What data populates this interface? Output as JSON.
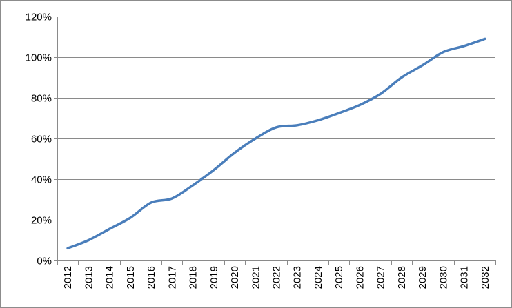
{
  "chart_data": {
    "type": "line",
    "title": "",
    "xlabel": "",
    "ylabel": "",
    "categories": [
      "2012",
      "2013",
      "2014",
      "2015",
      "2016",
      "2017",
      "2018",
      "2019",
      "2020",
      "2021",
      "2022",
      "2023",
      "2024",
      "2025",
      "2026",
      "2027",
      "2028",
      "2029",
      "2030",
      "2031",
      "2032"
    ],
    "series": [
      {
        "values": [
          6,
          10,
          15.5,
          21,
          28.5,
          30.5,
          37,
          44.5,
          53,
          60,
          65.5,
          66.5,
          69,
          72.5,
          76.5,
          82,
          90,
          96,
          102.5,
          105.5,
          109
        ],
        "color": "#4a7ebb"
      }
    ],
    "ylim": [
      0,
      120
    ],
    "yticks": [
      0,
      20,
      40,
      60,
      80,
      100,
      120
    ],
    "ytick_labels": [
      "0%",
      "20%",
      "40%",
      "60%",
      "80%",
      "100%",
      "120%"
    ],
    "y_unit": "%",
    "grid": "horizontal",
    "legend": "none",
    "x_tick_rotation": "vertical"
  }
}
